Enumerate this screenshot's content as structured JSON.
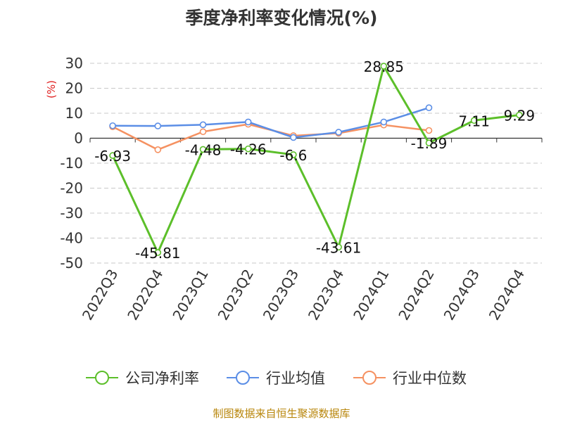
{
  "chart_data": {
    "type": "line",
    "title": "季度净利率变化情况(%)",
    "ylabel": "(%)",
    "categories": [
      "2022Q3",
      "2022Q4",
      "2023Q1",
      "2023Q2",
      "2023Q3",
      "2023Q4",
      "2024Q1",
      "2024Q2",
      "2024Q3",
      "2024Q4"
    ],
    "ylim": [
      -50,
      30
    ],
    "yticks": [
      30,
      20,
      10,
      0,
      -10,
      -20,
      -30,
      -40,
      -50
    ],
    "grid": true,
    "legend_position": "bottom",
    "series": [
      {
        "name": "公司净利率",
        "color": "#5cbf2a",
        "show_labels": true,
        "values": [
          -6.93,
          -45.81,
          -4.48,
          -4.26,
          -6.6,
          -43.61,
          28.85,
          -1.89,
          7.11,
          9.29
        ],
        "labels": [
          "-6.93",
          "-45.81",
          "-4.48",
          "-4.26",
          "-6.6",
          "-43.61",
          "28.85",
          "-1.89",
          "7.11",
          "9.29"
        ]
      },
      {
        "name": "行业均值",
        "color": "#5b8ee6",
        "show_labels": false,
        "values": [
          5.0,
          4.9,
          5.4,
          6.5,
          0.3,
          2.4,
          6.5,
          12.2,
          null,
          null
        ]
      },
      {
        "name": "行业中位数",
        "color": "#f59161",
        "show_labels": false,
        "values": [
          4.6,
          -4.6,
          2.6,
          5.6,
          1.0,
          2.0,
          5.3,
          3.1,
          null,
          null
        ]
      }
    ]
  },
  "source": "制图数据来自恒生聚源数据库"
}
